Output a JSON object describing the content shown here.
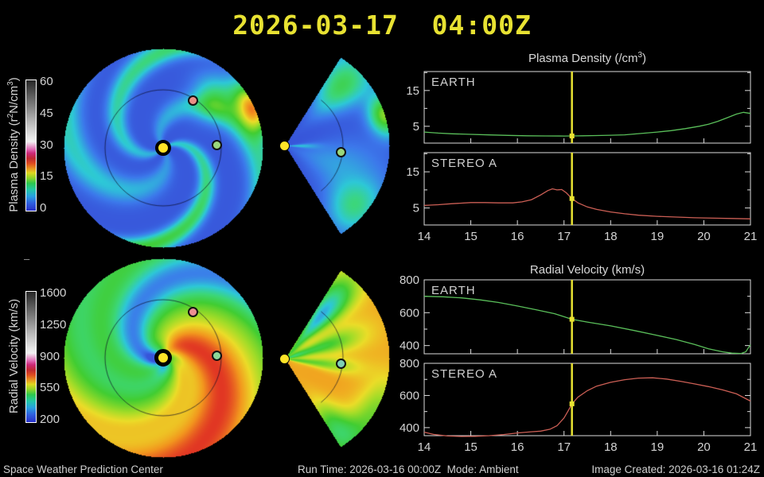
{
  "title": "2026-03-17  04:00Z",
  "colorbars": [
    {
      "label": {
        "pre": "Plasma Density (r",
        "sup1": "2",
        "mid": "N/cm",
        "sup2": "3",
        "post": ")"
      },
      "ticks": [
        "60",
        "45",
        "30",
        "15",
        "0"
      ]
    },
    {
      "label": {
        "pre": "Radial Velocity (km/s)",
        "sup1": "",
        "mid": "",
        "sup2": "",
        "post": ""
      },
      "ticks": [
        "1600",
        "1250",
        "900",
        "550",
        "200"
      ]
    }
  ],
  "section_titles": {
    "density": {
      "pre": "Plasma Density (/cm",
      "sup": "3",
      "post": ")"
    },
    "velocity": {
      "pre": "Radial Velocity (km/s)",
      "sup": "",
      "post": ""
    }
  },
  "footer": {
    "left": "Space Weather Prediction Center",
    "run_mode": "Run Time: 2026-03-16 00:00Z  Mode: Ambient",
    "created": "Image Created: 2026-03-16 01:24Z"
  },
  "misc": {
    "dash": "–"
  },
  "colors": {
    "accent_yellow": "#e8e232",
    "trace_green": "#5abf5a",
    "trace_red": "#cc5f55",
    "axis": "#dcdcdc",
    "text": "#d4d4d4",
    "sun": "#ffe428",
    "earth_dot": "#9ad87c",
    "earth_dot_cyan": "#7ed0b4",
    "stereo_a_dot": "#ea9086"
  },
  "maps": {
    "quantity_top": "plasma-density",
    "quantity_bottom": "radial-velocity",
    "views": [
      "ecliptic-disc",
      "meridional-wedge"
    ],
    "markers": [
      "sun",
      "earth",
      "stereo-a"
    ]
  },
  "chart_data": [
    {
      "id": "density-earth",
      "type": "line",
      "label": "EARTH",
      "color": "#5abf5a",
      "xlim": [
        14,
        21
      ],
      "ylim": [
        0.3,
        20.3
      ],
      "yticks": [
        5,
        15
      ],
      "yminor": [
        10,
        20
      ],
      "xticks": [
        14,
        15,
        16,
        17,
        18,
        19,
        20,
        21
      ],
      "show_xlabels": false,
      "now": 17.17,
      "now_value": 2.3,
      "points": [
        [
          14,
          3.4
        ],
        [
          14.3,
          3.1
        ],
        [
          14.6,
          2.9
        ],
        [
          15,
          2.75
        ],
        [
          15.4,
          2.6
        ],
        [
          15.8,
          2.45
        ],
        [
          16.2,
          2.35
        ],
        [
          16.6,
          2.3
        ],
        [
          17,
          2.28
        ],
        [
          17.17,
          2.3
        ],
        [
          17.4,
          2.35
        ],
        [
          17.7,
          2.42
        ],
        [
          18,
          2.5
        ],
        [
          18.3,
          2.62
        ],
        [
          18.6,
          2.95
        ],
        [
          19,
          3.4
        ],
        [
          19.3,
          3.8
        ],
        [
          19.6,
          4.35
        ],
        [
          19.9,
          5.0
        ],
        [
          20.1,
          5.6
        ],
        [
          20.3,
          6.4
        ],
        [
          20.5,
          7.4
        ],
        [
          20.7,
          8.4
        ],
        [
          20.85,
          8.9
        ],
        [
          21,
          8.6
        ]
      ]
    },
    {
      "id": "density-stereo-a",
      "type": "line",
      "label": "STEREO A",
      "color": "#cc5f55",
      "xlim": [
        14,
        21
      ],
      "ylim": [
        0.3,
        20.3
      ],
      "yticks": [
        5,
        15
      ],
      "yminor": [
        10,
        20
      ],
      "xticks": [
        14,
        15,
        16,
        17,
        18,
        19,
        20,
        21
      ],
      "show_xlabels": true,
      "now": 17.17,
      "now_value": 7.6,
      "points": [
        [
          14,
          5.7
        ],
        [
          14.3,
          5.9
        ],
        [
          14.6,
          6.2
        ],
        [
          15,
          6.5
        ],
        [
          15.3,
          6.5
        ],
        [
          15.6,
          6.42
        ],
        [
          15.9,
          6.4
        ],
        [
          16.1,
          6.7
        ],
        [
          16.3,
          7.3
        ],
        [
          16.5,
          8.6
        ],
        [
          16.65,
          9.8
        ],
        [
          16.75,
          10.3
        ],
        [
          16.85,
          10.0
        ],
        [
          16.95,
          10.1
        ],
        [
          17.05,
          9.2
        ],
        [
          17.17,
          7.6
        ],
        [
          17.3,
          6.4
        ],
        [
          17.5,
          5.3
        ],
        [
          17.7,
          4.6
        ],
        [
          18,
          3.9
        ],
        [
          18.3,
          3.4
        ],
        [
          18.6,
          3.0
        ],
        [
          19,
          2.7
        ],
        [
          19.4,
          2.5
        ],
        [
          19.8,
          2.3
        ],
        [
          20.2,
          2.2
        ],
        [
          20.6,
          2.1
        ],
        [
          21,
          2.0
        ]
      ]
    },
    {
      "id": "velocity-earth",
      "type": "line",
      "label": "EARTH",
      "color": "#5abf5a",
      "xlim": [
        14,
        21
      ],
      "ylim": [
        350,
        800
      ],
      "yticks": [
        400,
        600,
        800
      ],
      "yminor": [
        500,
        700
      ],
      "xticks": [
        14,
        15,
        16,
        17,
        18,
        19,
        20,
        21
      ],
      "show_xlabels": false,
      "now": 17.17,
      "now_value": 560,
      "points": [
        [
          14,
          700
        ],
        [
          14.4,
          697
        ],
        [
          14.8,
          690
        ],
        [
          15.2,
          678
        ],
        [
          15.6,
          662
        ],
        [
          16,
          641
        ],
        [
          16.4,
          618
        ],
        [
          16.8,
          594
        ],
        [
          17.17,
          560
        ],
        [
          17.5,
          543
        ],
        [
          18,
          520
        ],
        [
          18.5,
          492
        ],
        [
          19,
          462
        ],
        [
          19.4,
          437
        ],
        [
          19.8,
          407
        ],
        [
          20.1,
          380
        ],
        [
          20.4,
          362
        ],
        [
          20.6,
          354
        ],
        [
          20.8,
          352
        ],
        [
          20.9,
          362
        ],
        [
          21,
          405
        ]
      ]
    },
    {
      "id": "velocity-stereo-a",
      "type": "line",
      "label": "STEREO A",
      "color": "#cc5f55",
      "xlim": [
        14,
        21
      ],
      "ylim": [
        350,
        800
      ],
      "yticks": [
        400,
        600,
        800
      ],
      "yminor": [
        500,
        700
      ],
      "xticks": [
        14,
        15,
        16,
        17,
        18,
        19,
        20,
        21
      ],
      "show_xlabels": true,
      "now": 17.17,
      "now_value": 548,
      "points": [
        [
          14,
          372
        ],
        [
          14.2,
          358
        ],
        [
          14.5,
          348
        ],
        [
          14.8,
          345
        ],
        [
          15.1,
          346
        ],
        [
          15.4,
          350
        ],
        [
          15.7,
          357
        ],
        [
          16,
          367
        ],
        [
          16.3,
          374
        ],
        [
          16.5,
          378
        ],
        [
          16.7,
          390
        ],
        [
          16.85,
          412
        ],
        [
          17,
          460
        ],
        [
          17.1,
          510
        ],
        [
          17.17,
          548
        ],
        [
          17.3,
          590
        ],
        [
          17.5,
          630
        ],
        [
          17.7,
          658
        ],
        [
          18,
          682
        ],
        [
          18.3,
          698
        ],
        [
          18.6,
          708
        ],
        [
          18.9,
          710
        ],
        [
          19.2,
          702
        ],
        [
          19.5,
          688
        ],
        [
          19.8,
          672
        ],
        [
          20.1,
          655
        ],
        [
          20.4,
          635
        ],
        [
          20.7,
          610
        ],
        [
          21,
          565
        ]
      ]
    }
  ]
}
